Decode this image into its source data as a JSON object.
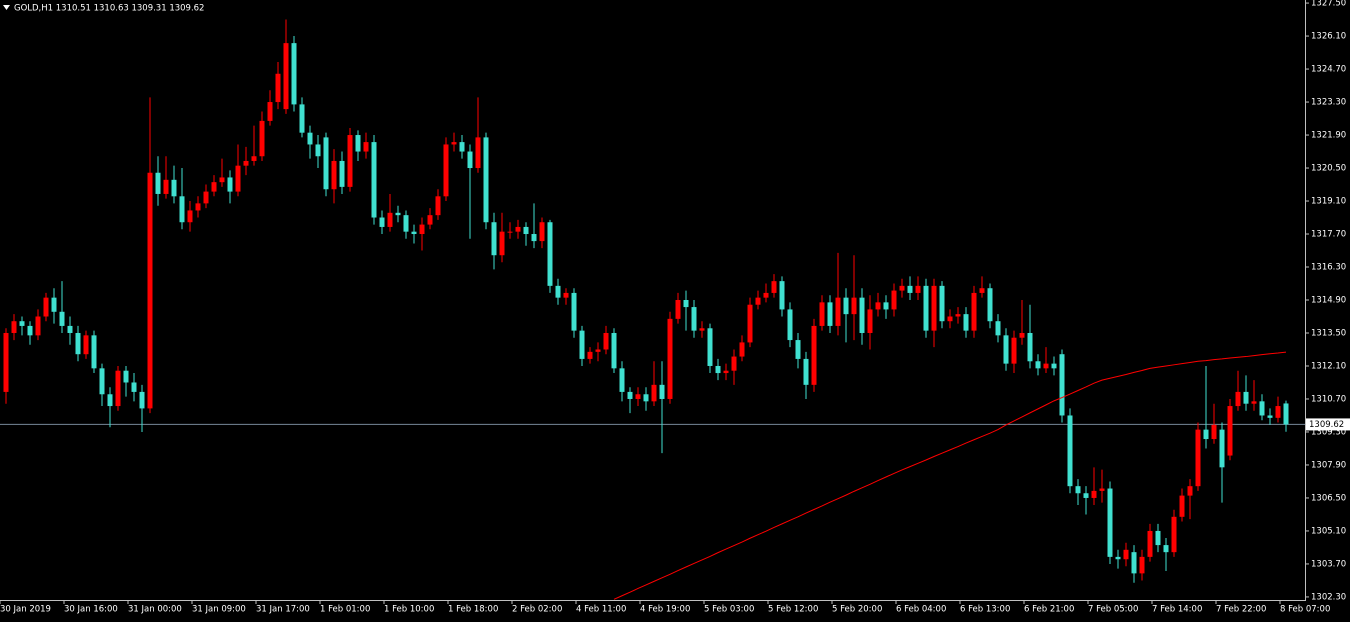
{
  "chart_data": {
    "type": "candlestick",
    "title": "GOLD,H1 1310.51 1310.63 1309.31 1309.62",
    "categories": [
      "30 Jan 2019",
      null,
      null,
      null,
      null,
      null,
      null,
      null,
      "30 Jan 16:00",
      null,
      null,
      null,
      null,
      null,
      null,
      null,
      "31 Jan 00:00",
      null,
      null,
      null,
      null,
      null,
      null,
      null,
      "31 Jan 09:00",
      null,
      null,
      null,
      null,
      null,
      null,
      null,
      "31 Jan 17:00",
      null,
      null,
      null,
      null,
      null,
      null,
      null,
      "1 Feb 01:00",
      null,
      null,
      null,
      null,
      null,
      null,
      null,
      "1 Feb 10:00",
      null,
      null,
      null,
      null,
      null,
      null,
      null,
      "1 Feb 18:00",
      null,
      null,
      null,
      null,
      null,
      null,
      null,
      "2 Feb 02:00",
      null,
      null,
      null,
      null,
      null,
      null,
      null,
      "4 Feb 11:00",
      null,
      null,
      null,
      null,
      null,
      null,
      null,
      "4 Feb 19:00",
      null,
      null,
      null,
      null,
      null,
      null,
      null,
      "5 Feb 03:00",
      null,
      null,
      null,
      null,
      null,
      null,
      null,
      "5 Feb 12:00",
      null,
      null,
      null,
      null,
      null,
      null,
      null,
      "5 Feb 20:00",
      null,
      null,
      null,
      null,
      null,
      null,
      null,
      "6 Feb 04:00",
      null,
      null,
      null,
      null,
      null,
      null,
      null,
      "6 Feb 13:00",
      null,
      null,
      null,
      null,
      null,
      null,
      null,
      "6 Feb 21:00",
      null,
      null,
      null,
      null,
      null,
      null,
      null,
      "7 Feb 05:00",
      null,
      null,
      null,
      null,
      null,
      null,
      null,
      "7 Feb 14:00",
      null,
      null,
      null,
      null,
      null,
      null,
      null,
      "7 Feb 22:00",
      null,
      null,
      null,
      null,
      null,
      null,
      null,
      "8 Feb 07:00"
    ],
    "open": [
      1311.0,
      1313.5,
      1314.0,
      1313.8,
      1313.4,
      1314.2,
      1315.0,
      1314.4,
      1313.8,
      1313.5,
      1312.6,
      1313.4,
      1312.0,
      1310.9,
      1310.4,
      1311.9,
      1311.4,
      1311.0,
      1310.3,
      1320.3,
      1319.4,
      1320.0,
      1319.3,
      1318.2,
      1318.7,
      1319.0,
      1319.5,
      1319.9,
      1320.1,
      1319.5,
      1320.6,
      1320.8,
      1321.0,
      1322.5,
      1323.3,
      1323.0,
      1325.8,
      1323.2,
      1322.0,
      1321.5,
      1321.8,
      1319.6,
      1320.8,
      1319.7,
      1321.9,
      1321.2,
      1321.6,
      1318.4,
      1318.0,
      1318.6,
      1318.5,
      1317.8,
      1317.7,
      1318.1,
      1318.5,
      1319.3,
      1321.5,
      1321.6,
      1321.2,
      1320.5,
      1321.8,
      1318.2,
      1316.8,
      1317.8,
      1317.8,
      1318.0,
      1317.7,
      1317.4,
      1318.2,
      1315.5,
      1315.0,
      1315.2,
      1313.6,
      1312.4,
      1312.7,
      1312.8,
      1313.5,
      1312.0,
      1311.0,
      1310.7,
      1310.9,
      1310.6,
      1311.3,
      1310.7,
      1314.1,
      1314.9,
      1314.6,
      1313.6,
      1313.7,
      1312.1,
      1311.8,
      1311.9,
      1312.5,
      1313.1,
      1314.7,
      1315.0,
      1315.2,
      1315.7,
      1314.5,
      1313.2,
      1312.4,
      1311.3,
      1313.8,
      1314.8,
      1313.8,
      1315.0,
      1314.3,
      1315.0,
      1313.5,
      1314.5,
      1314.8,
      1314.5,
      1315.3,
      1315.5,
      1315.2,
      1315.5,
      1313.6,
      1315.5,
      1314.0,
      1314.2,
      1314.3,
      1313.6,
      1315.2,
      1315.4,
      1314.0,
      1313.4,
      1312.2,
      1313.3,
      1313.5,
      1312.3,
      1312.0,
      1312.2,
      1312.6,
      1310.0,
      1307.0,
      1306.7,
      1306.5,
      1306.8,
      1306.9,
      1304.0,
      1303.9,
      1304.2,
      1303.3,
      1304.0,
      1305.1,
      1304.5,
      1304.2,
      1305.7,
      1306.6,
      1307.0,
      1309.4,
      1309.0,
      1309.4,
      1308.3,
      1310.4,
      1311.0,
      1310.5,
      1310.6,
      1310.0,
      1309.9,
      1310.51
    ],
    "high": [
      1313.7,
      1314.3,
      1314.2,
      1314.0,
      1314.5,
      1315.2,
      1315.4,
      1315.7,
      1314.2,
      1313.8,
      1313.6,
      1313.6,
      1312.2,
      1311.2,
      1312.1,
      1312.1,
      1311.8,
      1311.3,
      1323.5,
      1321.0,
      1321.0,
      1320.6,
      1320.5,
      1319.1,
      1319.3,
      1319.8,
      1320.2,
      1320.9,
      1320.4,
      1321.5,
      1321.4,
      1322.3,
      1322.9,
      1323.8,
      1325.0,
      1326.8,
      1326.1,
      1323.5,
      1322.3,
      1321.9,
      1322.0,
      1321.3,
      1321.2,
      1322.2,
      1322.1,
      1322.0,
      1321.9,
      1318.7,
      1319.4,
      1318.9,
      1318.7,
      1318.1,
      1318.4,
      1318.8,
      1319.6,
      1321.8,
      1322.0,
      1321.9,
      1321.5,
      1323.5,
      1322.0,
      1318.6,
      1318.6,
      1318.2,
      1318.3,
      1318.2,
      1319.0,
      1318.4,
      1318.3,
      1315.8,
      1315.4,
      1315.4,
      1313.8,
      1312.9,
      1313.1,
      1313.8,
      1313.7,
      1312.3,
      1311.2,
      1311.2,
      1311.2,
      1312.3,
      1312.3,
      1314.4,
      1315.2,
      1315.3,
      1314.9,
      1314.0,
      1313.9,
      1312.4,
      1312.2,
      1312.8,
      1313.4,
      1315.0,
      1315.3,
      1315.6,
      1316.0,
      1315.9,
      1314.8,
      1313.5,
      1312.7,
      1314.1,
      1315.1,
      1315.1,
      1316.9,
      1315.4,
      1316.8,
      1315.4,
      1315.1,
      1315.2,
      1315.1,
      1315.6,
      1315.8,
      1315.9,
      1315.9,
      1315.8,
      1315.8,
      1315.7,
      1314.5,
      1314.6,
      1314.6,
      1315.5,
      1315.9,
      1315.6,
      1314.3,
      1313.7,
      1313.6,
      1314.9,
      1314.7,
      1312.6,
      1312.9,
      1312.5,
      1312.8,
      1310.3,
      1307.3,
      1307.0,
      1307.8,
      1307.7,
      1307.2,
      1304.3,
      1304.6,
      1304.5,
      1304.3,
      1305.4,
      1305.4,
      1304.8,
      1306.0,
      1306.9,
      1307.3,
      1309.7,
      1312.1,
      1310.5,
      1309.7,
      1310.7,
      1311.9,
      1311.7,
      1311.5,
      1310.9,
      1310.3,
      1310.8,
      1310.63
    ],
    "low": [
      1310.5,
      1313.2,
      1313.4,
      1313.0,
      1313.2,
      1314.0,
      1313.9,
      1313.5,
      1313.0,
      1312.3,
      1312.4,
      1311.8,
      1310.4,
      1309.5,
      1310.2,
      1310.8,
      1310.6,
      1309.3,
      1310.1,
      1318.9,
      1319.2,
      1319.0,
      1317.9,
      1317.8,
      1318.4,
      1318.8,
      1319.3,
      1319.7,
      1319.0,
      1319.3,
      1320.2,
      1320.6,
      1320.8,
      1322.3,
      1323.0,
      1322.8,
      1322.9,
      1321.8,
      1320.9,
      1320.5,
      1319.3,
      1319.0,
      1319.4,
      1319.5,
      1320.8,
      1320.9,
      1318.1,
      1317.7,
      1317.8,
      1318.2,
      1317.5,
      1317.3,
      1317.0,
      1317.9,
      1318.3,
      1319.1,
      1321.2,
      1320.9,
      1317.5,
      1320.3,
      1317.9,
      1316.2,
      1316.5,
      1317.5,
      1317.5,
      1317.2,
      1317.1,
      1317.1,
      1315.2,
      1314.7,
      1314.7,
      1313.3,
      1312.1,
      1312.2,
      1312.3,
      1312.6,
      1311.8,
      1310.6,
      1310.1,
      1310.4,
      1310.2,
      1310.4,
      1308.4,
      1310.5,
      1313.9,
      1313.6,
      1313.3,
      1313.3,
      1311.8,
      1311.5,
      1311.5,
      1311.3,
      1312.3,
      1312.9,
      1314.5,
      1314.8,
      1315.0,
      1314.2,
      1312.9,
      1312.0,
      1310.7,
      1311.0,
      1313.6,
      1313.5,
      1313.4,
      1313.1,
      1313.2,
      1313.0,
      1312.8,
      1314.2,
      1314.1,
      1314.2,
      1315.0,
      1314.9,
      1314.9,
      1313.3,
      1312.9,
      1313.7,
      1313.7,
      1313.9,
      1313.3,
      1313.3,
      1315.0,
      1313.7,
      1313.1,
      1311.9,
      1311.8,
      1313.0,
      1312.0,
      1311.7,
      1311.8,
      1311.7,
      1309.7,
      1306.7,
      1306.2,
      1305.8,
      1306.2,
      1306.3,
      1303.7,
      1303.5,
      1303.6,
      1302.9,
      1303.0,
      1303.8,
      1304.2,
      1303.4,
      1304.0,
      1305.5,
      1305.6,
      1306.8,
      1308.6,
      1308.8,
      1306.3,
      1308.1,
      1310.2,
      1310.2,
      1310.2,
      1309.8,
      1309.6,
      1309.7,
      1309.31
    ],
    "close": [
      1313.5,
      1314.0,
      1313.8,
      1313.4,
      1314.2,
      1315.0,
      1314.4,
      1313.8,
      1313.5,
      1312.6,
      1313.4,
      1312.0,
      1310.9,
      1310.4,
      1311.9,
      1311.4,
      1311.0,
      1310.3,
      1320.3,
      1319.4,
      1320.0,
      1319.3,
      1318.2,
      1318.7,
      1319.0,
      1319.5,
      1319.9,
      1320.1,
      1319.5,
      1320.6,
      1320.8,
      1321.0,
      1322.5,
      1323.3,
      1324.5,
      1325.8,
      1323.2,
      1322.0,
      1321.5,
      1321.0,
      1319.6,
      1320.8,
      1319.7,
      1321.9,
      1321.2,
      1321.6,
      1318.4,
      1318.0,
      1318.6,
      1318.5,
      1317.8,
      1317.7,
      1318.1,
      1318.5,
      1319.3,
      1321.5,
      1321.6,
      1321.2,
      1320.5,
      1321.8,
      1318.2,
      1316.8,
      1317.8,
      1317.8,
      1318.0,
      1317.7,
      1317.4,
      1318.2,
      1315.5,
      1315.0,
      1315.2,
      1313.6,
      1312.4,
      1312.7,
      1312.8,
      1313.5,
      1312.0,
      1311.0,
      1310.7,
      1310.9,
      1310.6,
      1311.3,
      1310.7,
      1314.1,
      1314.9,
      1314.6,
      1313.6,
      1313.7,
      1312.1,
      1311.8,
      1311.9,
      1312.5,
      1313.1,
      1314.7,
      1315.0,
      1315.2,
      1315.7,
      1314.5,
      1313.2,
      1312.4,
      1311.3,
      1313.8,
      1314.8,
      1313.8,
      1315.0,
      1314.3,
      1315.0,
      1313.5,
      1314.5,
      1314.8,
      1314.5,
      1315.3,
      1315.5,
      1315.2,
      1315.5,
      1313.6,
      1315.5,
      1314.0,
      1314.2,
      1314.3,
      1313.6,
      1315.2,
      1315.4,
      1314.0,
      1313.4,
      1312.2,
      1313.3,
      1313.5,
      1312.3,
      1312.0,
      1312.2,
      1312.0,
      1310.0,
      1307.0,
      1306.7,
      1306.5,
      1306.8,
      1306.9,
      1304.0,
      1303.9,
      1304.3,
      1303.3,
      1304.0,
      1305.1,
      1304.5,
      1304.2,
      1305.7,
      1306.6,
      1307.0,
      1309.4,
      1309.0,
      1309.6,
      1307.8,
      1310.4,
      1311.0,
      1310.5,
      1310.6,
      1310.0,
      1309.9,
      1310.4,
      1309.62
    ],
    "up_color": "#ff0000",
    "down_color": "#40e0d0",
    "moving_average": {
      "color": "#ff0000",
      "values": [
        null,
        null,
        null,
        null,
        null,
        null,
        null,
        null,
        null,
        null,
        null,
        null,
        null,
        null,
        null,
        null,
        null,
        null,
        null,
        null,
        null,
        null,
        null,
        null,
        null,
        null,
        null,
        null,
        null,
        null,
        null,
        null,
        null,
        null,
        null,
        null,
        null,
        null,
        null,
        null,
        null,
        null,
        null,
        null,
        null,
        null,
        null,
        null,
        null,
        null,
        null,
        null,
        null,
        null,
        null,
        null,
        null,
        null,
        null,
        null,
        null,
        null,
        null,
        null,
        null,
        null,
        null,
        null,
        null,
        null,
        null,
        null,
        null,
        null,
        null,
        null,
        1302.2,
        1302.35,
        1302.5,
        1302.66,
        1302.81,
        1302.96,
        1303.11,
        1303.26,
        1303.42,
        1303.57,
        1303.72,
        1303.87,
        1304.02,
        1304.18,
        1304.33,
        1304.48,
        1304.63,
        1304.79,
        1304.94,
        1305.09,
        1305.25,
        1305.4,
        1305.55,
        1305.7,
        1305.86,
        1306.01,
        1306.16,
        1306.32,
        1306.47,
        1306.62,
        1306.78,
        1306.93,
        1307.08,
        1307.24,
        1307.39,
        1307.54,
        1307.69,
        1307.83,
        1307.97,
        1308.11,
        1308.26,
        1308.4,
        1308.54,
        1308.68,
        1308.83,
        1308.97,
        1309.11,
        1309.25,
        1309.4,
        1309.6,
        1309.77,
        1309.94,
        1310.11,
        1310.28,
        1310.45,
        1310.62,
        1310.76,
        1310.91,
        1311.06,
        1311.21,
        1311.37,
        1311.5,
        1311.58,
        1311.66,
        1311.74,
        1311.83,
        1311.91,
        1312.0,
        1312.05,
        1312.1,
        1312.15,
        1312.2,
        1312.25,
        1312.3,
        1312.33,
        1312.37,
        1312.4,
        1312.44,
        1312.47,
        1312.5,
        1312.54,
        1312.58,
        1312.62,
        1312.65,
        1312.69
      ]
    },
    "current_price": {
      "value": 1309.62,
      "color": "#778899"
    },
    "ylim": [
      1302.17,
      1327.63
    ],
    "yticks": [
      {
        "value": 1327.5,
        "label": "1327.50"
      },
      {
        "value": 1326.1,
        "label": "1326.10"
      },
      {
        "value": 1324.7,
        "label": "1324.70"
      },
      {
        "value": 1323.3,
        "label": "1323.30"
      },
      {
        "value": 1321.9,
        "label": "1321.90"
      },
      {
        "value": 1320.5,
        "label": "1320.50"
      },
      {
        "value": 1319.1,
        "label": "1319.10"
      },
      {
        "value": 1317.7,
        "label": "1317.70"
      },
      {
        "value": 1316.3,
        "label": "1316.30"
      },
      {
        "value": 1314.9,
        "label": "1314.90"
      },
      {
        "value": 1313.5,
        "label": "1313.50"
      },
      {
        "value": 1312.1,
        "label": "1312.10"
      },
      {
        "value": 1310.7,
        "label": "1310.70"
      },
      {
        "value": 1309.3,
        "label": "1309.30"
      },
      {
        "value": 1307.9,
        "label": "1307.90"
      },
      {
        "value": 1306.5,
        "label": "1306.50"
      },
      {
        "value": 1305.1,
        "label": "1305.10"
      },
      {
        "value": 1303.7,
        "label": "1303.70"
      },
      {
        "value": 1302.3,
        "label": "1302.30"
      }
    ]
  }
}
